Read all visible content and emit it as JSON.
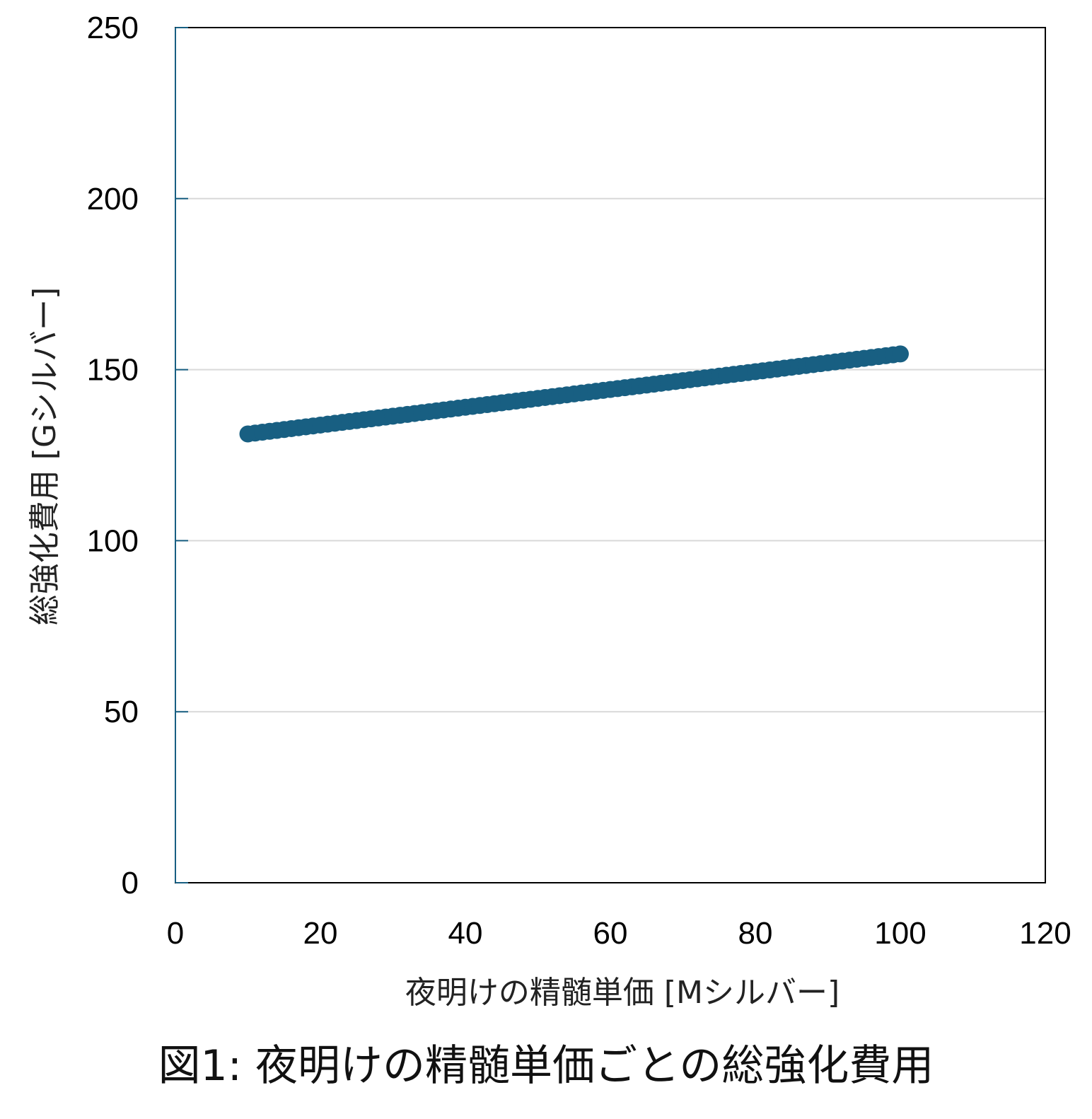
{
  "caption": "図1: 夜明けの精髄単価ごとの総強化費用",
  "chart_data": {
    "type": "scatter",
    "xlabel": "夜明けの精髄単価 [Mシルバー]",
    "ylabel": "総強化費用 [Gシルバー]",
    "xlim": [
      0,
      120
    ],
    "ylim": [
      0,
      250
    ],
    "xticks": [
      0,
      20,
      40,
      60,
      80,
      100,
      120
    ],
    "yticks": [
      0,
      50,
      100,
      150,
      200,
      250
    ],
    "grid": "horizontal",
    "marker_color": "#185F82",
    "series": [
      {
        "x_start": 10,
        "x_end": 100,
        "x_step": 1,
        "y_start": 131.2,
        "y_end": 154.6
      }
    ]
  }
}
